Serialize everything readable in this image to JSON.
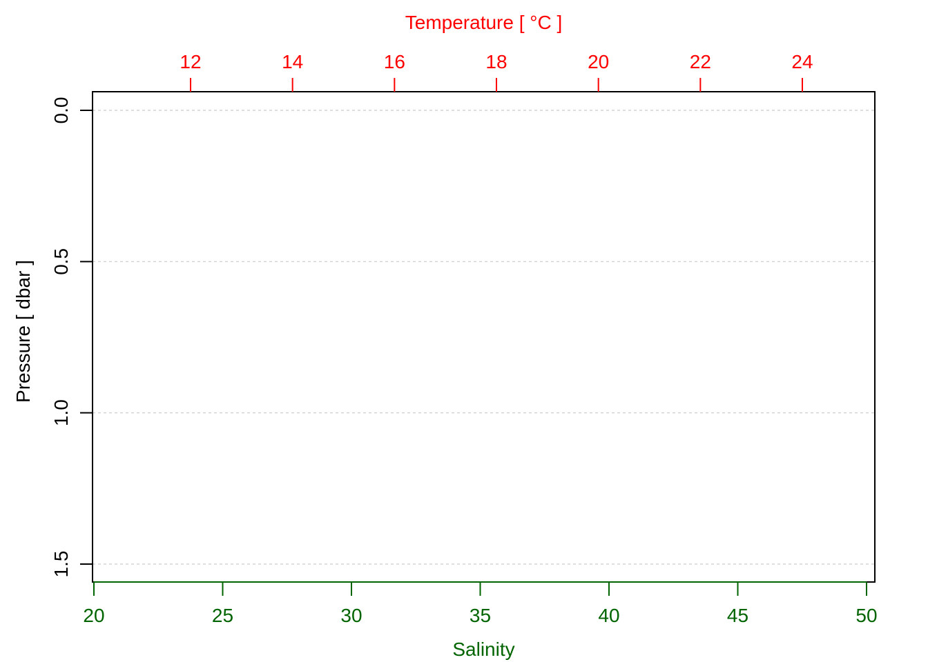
{
  "chart_data": {
    "type": "line",
    "title": "",
    "series": [],
    "axes": {
      "bottom": {
        "label": "Salinity",
        "color": "#006400",
        "ticks": [
          20,
          25,
          30,
          35,
          40,
          45,
          50
        ],
        "tick_labels": [
          "20",
          "25",
          "30",
          "35",
          "40",
          "45",
          "50"
        ],
        "lim": [
          20,
          50
        ]
      },
      "top": {
        "label": "Temperature [ °C ]",
        "color": "#ff0000",
        "ticks": [
          12,
          14,
          16,
          18,
          20,
          22,
          24
        ],
        "tick_labels": [
          "12",
          "14",
          "16",
          "18",
          "20",
          "22",
          "24"
        ],
        "lim": [
          10.08,
          25.42
        ]
      },
      "left": {
        "label": "Pressure [ dbar ]",
        "color": "#000000",
        "ticks": [
          0.0,
          0.5,
          1.0,
          1.5
        ],
        "tick_labels": [
          "0.0",
          "0.5",
          "1.0",
          "1.5"
        ],
        "lim": [
          -0.06,
          1.56
        ],
        "reversed": true
      }
    },
    "grid": {
      "horizontal": true,
      "style": "dotted",
      "color": "#d3d3d3"
    }
  }
}
